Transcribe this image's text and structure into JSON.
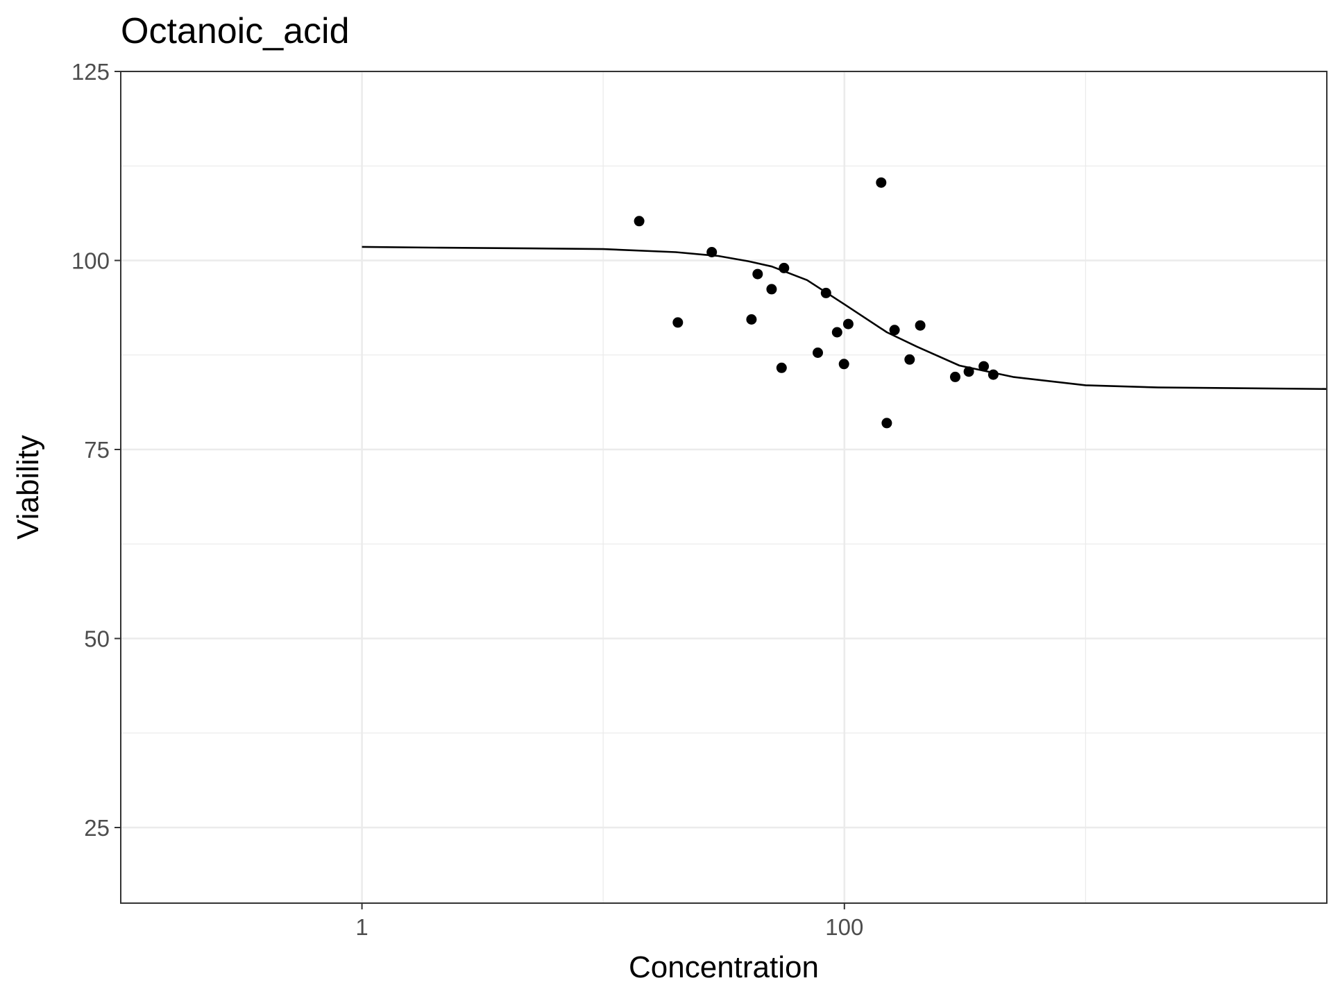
{
  "chart_data": {
    "type": "scatter",
    "title": "Octanoic_acid",
    "xlabel": "Concentration",
    "ylabel": "Viability",
    "x_scale": "log10",
    "xlim": [
      0.1,
      10000
    ],
    "ylim": [
      15,
      125
    ],
    "x_ticks": [
      {
        "value": 1,
        "label": "1"
      },
      {
        "value": 100,
        "label": "100"
      }
    ],
    "x_minor_ticks": [
      0.1,
      10,
      1000,
      10000
    ],
    "y_ticks": [
      {
        "value": 25,
        "label": "25"
      },
      {
        "value": 50,
        "label": "50"
      },
      {
        "value": 75,
        "label": "75"
      },
      {
        "value": 100,
        "label": "100"
      },
      {
        "value": 125,
        "label": "125"
      }
    ],
    "y_minor_ticks": [
      37.5,
      62.5,
      87.5,
      112.5
    ],
    "grid": true,
    "points": [
      {
        "x": 14.1,
        "y": 105.2
      },
      {
        "x": 20.4,
        "y": 91.8
      },
      {
        "x": 28.2,
        "y": 101.1
      },
      {
        "x": 41.2,
        "y": 92.2
      },
      {
        "x": 43.7,
        "y": 98.2
      },
      {
        "x": 49.9,
        "y": 96.2
      },
      {
        "x": 54.9,
        "y": 85.8
      },
      {
        "x": 56.2,
        "y": 99.0
      },
      {
        "x": 77.6,
        "y": 87.8
      },
      {
        "x": 83.9,
        "y": 95.7
      },
      {
        "x": 93.3,
        "y": 90.5
      },
      {
        "x": 99.6,
        "y": 86.3
      },
      {
        "x": 103.8,
        "y": 91.6
      },
      {
        "x": 142.1,
        "y": 110.3
      },
      {
        "x": 149.9,
        "y": 78.5
      },
      {
        "x": 161.4,
        "y": 90.8
      },
      {
        "x": 186.4,
        "y": 86.9
      },
      {
        "x": 206.3,
        "y": 91.4
      },
      {
        "x": 288.1,
        "y": 84.6
      },
      {
        "x": 328.0,
        "y": 85.3
      },
      {
        "x": 378.2,
        "y": 86.0
      },
      {
        "x": 414.3,
        "y": 84.9
      }
    ],
    "fit_line": [
      {
        "x": 1,
        "y": 101.8
      },
      {
        "x": 2,
        "y": 101.7
      },
      {
        "x": 5,
        "y": 101.6
      },
      {
        "x": 10,
        "y": 101.5
      },
      {
        "x": 20,
        "y": 101.1
      },
      {
        "x": 30,
        "y": 100.6
      },
      {
        "x": 40,
        "y": 99.9
      },
      {
        "x": 50,
        "y": 99.2
      },
      {
        "x": 70,
        "y": 97.4
      },
      {
        "x": 100,
        "y": 94.2
      },
      {
        "x": 150,
        "y": 90.5
      },
      {
        "x": 200,
        "y": 88.6
      },
      {
        "x": 300,
        "y": 86.1
      },
      {
        "x": 500,
        "y": 84.6
      },
      {
        "x": 1000,
        "y": 83.5
      },
      {
        "x": 2000,
        "y": 83.2
      },
      {
        "x": 10000,
        "y": 83.0
      }
    ]
  }
}
